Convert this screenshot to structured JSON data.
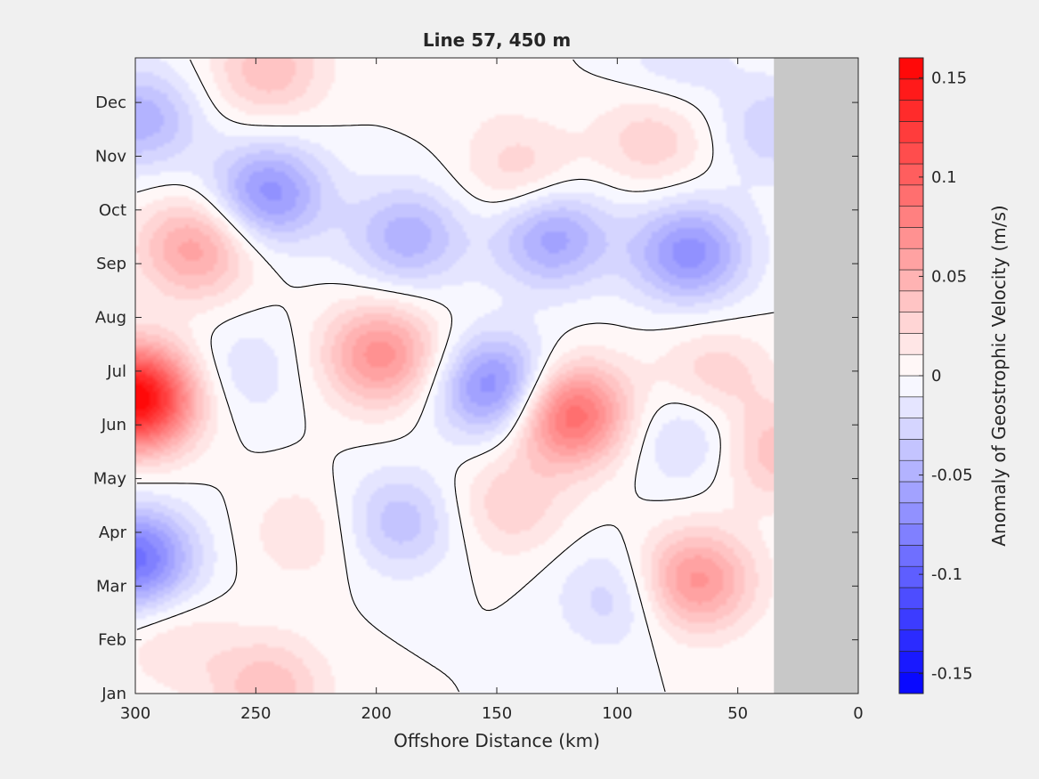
{
  "chart_data": {
    "type": "heatmap",
    "title": "Line 57, 450 m",
    "xlabel": "Offshore Distance (km)",
    "x_ticks": [
      300,
      250,
      200,
      150,
      100,
      50,
      0
    ],
    "xlim": [
      300,
      0
    ],
    "x_direction": "reversed",
    "y_ticks": [
      "Jan",
      "Feb",
      "Mar",
      "Apr",
      "May",
      "Jun",
      "Jul",
      "Aug",
      "Sep",
      "Oct",
      "Nov",
      "Dec"
    ],
    "colorbar": {
      "label": "Anomaly of Geostrophic Velocity (m/s)",
      "ticks": [
        "0.15",
        "0.1",
        "0.05",
        "0",
        "-0.05",
        "-0.1",
        "-0.15"
      ],
      "range": [
        -0.16,
        0.16
      ],
      "levels": 30,
      "colormap": "blue-white-red",
      "max_color": "#ff0000",
      "min_color": "#0000ff",
      "mid_color": "#ffffff"
    },
    "no_data_color": "#c8c8c8",
    "no_data_x_range": [
      35,
      0
    ],
    "zero_contour_color": "#000000",
    "anomaly_features": [
      {
        "x": 300,
        "month": 5.5,
        "value": 0.16
      },
      {
        "x": 275,
        "month": 8.3,
        "value": 0.06
      },
      {
        "x": 298,
        "month": 10.7,
        "value": -0.05
      },
      {
        "x": 300,
        "month": 2.5,
        "value": -0.09
      },
      {
        "x": 245,
        "month": 9.3,
        "value": -0.07
      },
      {
        "x": 187,
        "month": 8.5,
        "value": -0.05
      },
      {
        "x": 198,
        "month": 6.3,
        "value": 0.07
      },
      {
        "x": 150,
        "month": 5.7,
        "value": -0.08
      },
      {
        "x": 120,
        "month": 5.2,
        "value": 0.1
      },
      {
        "x": 127,
        "month": 8.5,
        "value": -0.06
      },
      {
        "x": 70,
        "month": 8.2,
        "value": -0.07
      },
      {
        "x": 68,
        "month": 2.1,
        "value": 0.07
      },
      {
        "x": 140,
        "month": 9.7,
        "value": 0.03
      },
      {
        "x": 85,
        "month": 10.3,
        "value": 0.03
      },
      {
        "x": 245,
        "month": 11.6,
        "value": 0.04
      },
      {
        "x": 190,
        "month": 3.2,
        "value": -0.04
      },
      {
        "x": 100,
        "month": 1.8,
        "value": -0.03
      },
      {
        "x": 70,
        "month": 4.8,
        "value": -0.03
      },
      {
        "x": 35,
        "month": 4.5,
        "value": 0.04
      },
      {
        "x": 245,
        "month": 0.1,
        "value": 0.04
      },
      {
        "x": 230,
        "month": 3.0,
        "value": 0.02
      },
      {
        "x": 60,
        "month": 5.9,
        "value": 0.03
      },
      {
        "x": 35,
        "month": 10.5,
        "value": -0.03
      },
      {
        "x": 285,
        "month": 1.0,
        "value": 0.02
      },
      {
        "x": 163,
        "month": 11.6,
        "value": 0.01
      },
      {
        "x": 75,
        "month": 11.8,
        "value": -0.02
      },
      {
        "x": 255,
        "month": 6.0,
        "value": -0.02
      },
      {
        "x": 145,
        "month": 3.5,
        "value": 0.03
      }
    ],
    "grid": false
  }
}
